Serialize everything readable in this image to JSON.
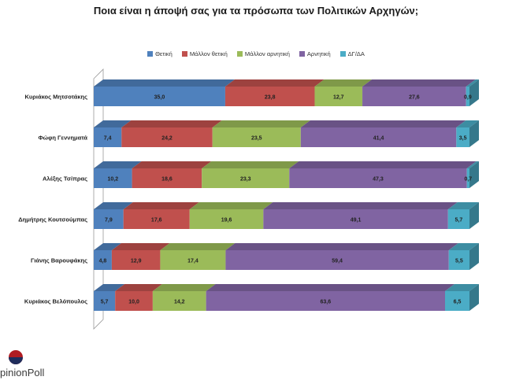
{
  "title": "Ποια είναι η άποψή σας για τα πρόσωπα των Πολιτικών Αρχηγών;",
  "brand": {
    "logo_text": "opinionPoll",
    "visible_text": "pinionPoll"
  },
  "chart_data": {
    "type": "bar",
    "orientation": "horizontal",
    "stacked": "100%",
    "legend_position": "top",
    "categories": [
      "Κυριάκος Μητσοτάκης",
      "Φώφη Γεννηματά",
      "Αλέξης Τσίπρας",
      "Δημήτρης Κουτσούμπας",
      "Γιάνης Βαρουφάκης",
      "Κυριάκος Βελόπουλος"
    ],
    "series": [
      {
        "name": "Θετική",
        "color": "#4f81bd",
        "values": [
          35.0,
          7.4,
          10.2,
          7.9,
          4.8,
          5.7
        ]
      },
      {
        "name": "Μάλλον θετική",
        "color": "#c0504d",
        "values": [
          23.8,
          24.2,
          18.6,
          17.6,
          12.9,
          10.0
        ]
      },
      {
        "name": "Μάλλον αρνητική",
        "color": "#9bbb59",
        "values": [
          12.7,
          23.5,
          23.3,
          19.6,
          17.4,
          14.2
        ]
      },
      {
        "name": "Αρνητική",
        "color": "#8064a2",
        "values": [
          27.6,
          41.4,
          47.3,
          49.1,
          59.4,
          63.6
        ]
      },
      {
        "name": "ΔΓ/ΔΑ",
        "color": "#4bacc6",
        "values": [
          0.9,
          3.5,
          0.7,
          5.7,
          5.5,
          6.5
        ]
      }
    ],
    "labels": [
      [
        "35,0",
        "23,8",
        "12,7",
        "27,6",
        "0,9"
      ],
      [
        "7,4",
        "24,2",
        "23,5",
        "41,4",
        "3,5"
      ],
      [
        "10,2",
        "18,6",
        "23,3",
        "47,3",
        "0,7"
      ],
      [
        "7,9",
        "17,6",
        "19,6",
        "49,1",
        "5,7"
      ],
      [
        "4,8",
        "12,9",
        "17,4",
        "59,4",
        "5,5"
      ],
      [
        "5,7",
        "10,0",
        "14,2",
        "63,6",
        "6,5"
      ]
    ]
  }
}
